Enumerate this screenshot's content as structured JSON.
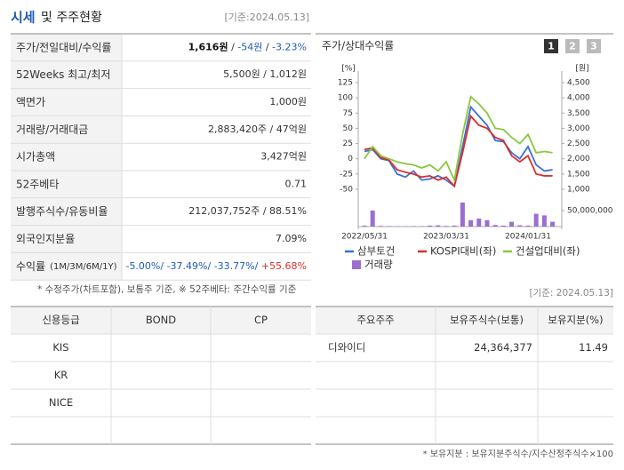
{
  "header": {
    "title_main": "시세",
    "title_rest": "및 주주현황",
    "date": "[기준:2024.05.13]"
  },
  "summary": {
    "rows": [
      {
        "label": "주가/전일대비/수익률",
        "value": [
          "1,616원",
          " / ",
          "-54원",
          " / ",
          "-3.23%"
        ]
      },
      {
        "label": "52Weeks 최고/최저",
        "value": [
          "5,500원 / 1,012원"
        ]
      },
      {
        "label": "액면가",
        "value": [
          "1,000원"
        ]
      },
      {
        "label": "거래량/거래대금",
        "value": [
          "2,883,420주 / 47억원"
        ]
      },
      {
        "label": "시가총액",
        "value": [
          "3,427억원"
        ]
      },
      {
        "label": "52주베타",
        "value": [
          "0.71"
        ]
      },
      {
        "label": "발행주식수/유동비율",
        "value": [
          "212,037,752주 / 88.51%"
        ]
      },
      {
        "label": "외국인지분율",
        "value": [
          "7.09%"
        ]
      },
      {
        "label": "수익률",
        "note": "(1M/3M/6M/1Y)",
        "value": [
          "-5.00%/",
          " -37.49%/",
          " -33.77%/",
          " +55.68%"
        ]
      }
    ],
    "footnote": "* 수정주가(차트포함), 보통주 기준, ※ 52주베타: 주간수익률 기준"
  },
  "chart": {
    "type": "line",
    "title": "주가/상대수익률",
    "tabs": [
      "1",
      "2",
      "3"
    ],
    "y_unit": "[%]",
    "y2_unit": "[원]",
    "categories": [
      "2022/05/31",
      null,
      null,
      null,
      null,
      null,
      null,
      null,
      null,
      null,
      "2023/03/31",
      null,
      null,
      null,
      null,
      null,
      null,
      null,
      null,
      null,
      "2024/01/31",
      null,
      null,
      null
    ],
    "ylim": [
      -50,
      125
    ],
    "yticks": [
      125,
      100,
      75,
      50,
      25,
      0,
      -25,
      -50
    ],
    "y2lim": [
      1000,
      4500
    ],
    "y2ticks": [
      {
        "value": 4500,
        "label": "4,500"
      },
      {
        "value": 4000,
        "label": "4,000"
      },
      {
        "value": 3500,
        "label": "3,500"
      },
      {
        "value": 3000,
        "label": "3,000"
      },
      {
        "value": 2500,
        "label": "2,500"
      },
      {
        "value": 2000,
        "label": "2,000"
      },
      {
        "value": 1500,
        "label": "1,500"
      },
      {
        "value": 1000,
        "label": "1,000"
      }
    ],
    "series": [
      {
        "name": "삼부토건",
        "color": "#3a6fd8",
        "values": [
          12,
          15,
          0,
          -3,
          -25,
          -30,
          -20,
          -35,
          -33,
          -28,
          -35,
          -45,
          20,
          85,
          70,
          55,
          30,
          28,
          10,
          0,
          20,
          -10,
          -20,
          -18
        ]
      },
      {
        "name": "KOSPI대비(좌)",
        "color": "#d9302c",
        "values": [
          15,
          18,
          2,
          -2,
          -18,
          -22,
          -25,
          -30,
          -28,
          -35,
          -30,
          -45,
          10,
          70,
          55,
          50,
          35,
          30,
          5,
          -5,
          5,
          -25,
          -28,
          -28
        ]
      },
      {
        "name": "건설업대비(좌)",
        "color": "#8cc63f",
        "values": [
          0,
          20,
          5,
          0,
          -5,
          -8,
          -10,
          -15,
          -10,
          -20,
          -5,
          -35,
          40,
          102,
          90,
          75,
          50,
          48,
          35,
          25,
          40,
          10,
          12,
          10
        ]
      }
    ],
    "volume": {
      "name": "거래량",
      "color": "#9b6ed0",
      "ylim": [
        0,
        75000000
      ],
      "yticks": [
        {
          "value": 50000000,
          "label": "50,000,000"
        }
      ],
      "values": [
        3000000,
        50000000,
        2000000,
        1500000,
        1000000,
        1000000,
        1500000,
        1000000,
        3000000,
        4000000,
        2000000,
        3000000,
        75000000,
        20000000,
        25000000,
        20000000,
        5000000,
        3000000,
        15000000,
        4000000,
        3000000,
        40000000,
        35000000,
        15000000
      ]
    }
  },
  "credit": {
    "columns": [
      "신용등급",
      "BOND",
      "CP"
    ],
    "rows": [
      "KIS",
      "KR",
      "NICE"
    ]
  },
  "holders": {
    "date": "[기준: 2024.05.13]",
    "columns": [
      "주요주주",
      "보유주식수(보통)",
      "보유지분(%)"
    ],
    "rows": [
      [
        "디와이디",
        "24,364,377",
        "11.49"
      ]
    ],
    "footnote": "* 보유지분 : 보유지분주식수/지수산정주식수×100"
  }
}
